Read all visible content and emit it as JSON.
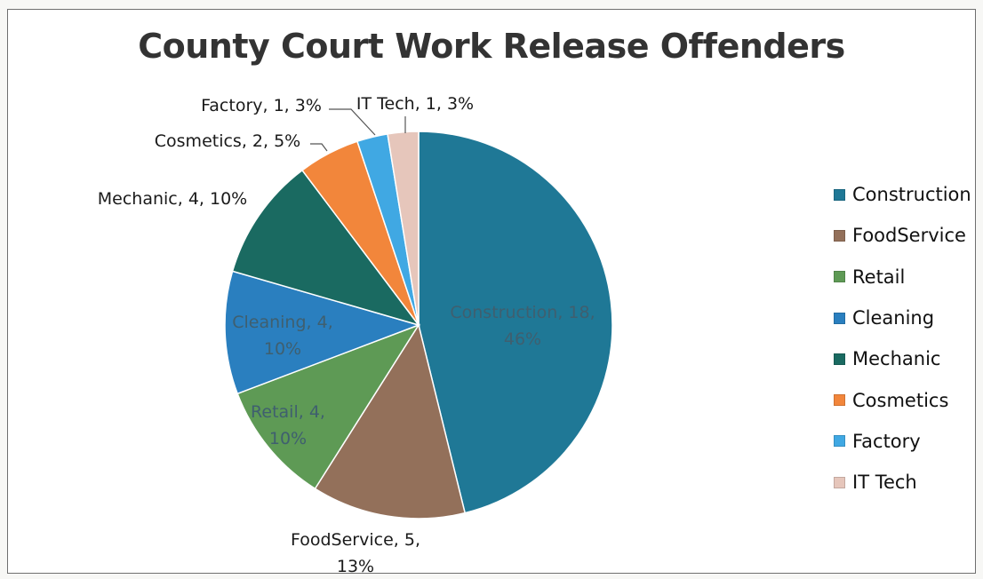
{
  "chart_data": {
    "type": "pie",
    "title": "County Court Work Release Offenders",
    "legend_position": "right",
    "slices": [
      {
        "name": "Construction",
        "value": 18,
        "percent": "46%",
        "color": "#1f7896"
      },
      {
        "name": "FoodService",
        "value": 5,
        "percent": "13%",
        "color": "#93705a"
      },
      {
        "name": "Retail",
        "value": 4,
        "percent": "10%",
        "color": "#5e9a55"
      },
      {
        "name": "Cleaning",
        "value": 4,
        "percent": "10%",
        "color": "#2a7fbf"
      },
      {
        "name": "Mechanic",
        "value": 4,
        "percent": "10%",
        "color": "#1a6a61"
      },
      {
        "name": "Cosmetics",
        "value": 2,
        "percent": "5%",
        "color": "#f2863b"
      },
      {
        "name": "Factory",
        "value": 1,
        "percent": "3%",
        "color": "#40a8e3"
      },
      {
        "name": "IT Tech",
        "value": 1,
        "percent": "3%",
        "color": "#e6c6bb"
      }
    ],
    "labels": [
      {
        "lines": [
          "Construction, 18,",
          "46%"
        ]
      },
      {
        "lines": [
          "FoodService, 5,",
          "13%"
        ]
      },
      {
        "lines": [
          "Retail, 4,",
          "10%"
        ]
      },
      {
        "lines": [
          "Cleaning, 4,",
          "10%"
        ]
      },
      {
        "lines": [
          "Mechanic, 4, 10%"
        ]
      },
      {
        "lines": [
          "Cosmetics, 2, 5%"
        ]
      },
      {
        "lines": [
          "Factory, 1, 3%"
        ]
      },
      {
        "lines": [
          "IT Tech, 1, 3%"
        ]
      }
    ]
  }
}
